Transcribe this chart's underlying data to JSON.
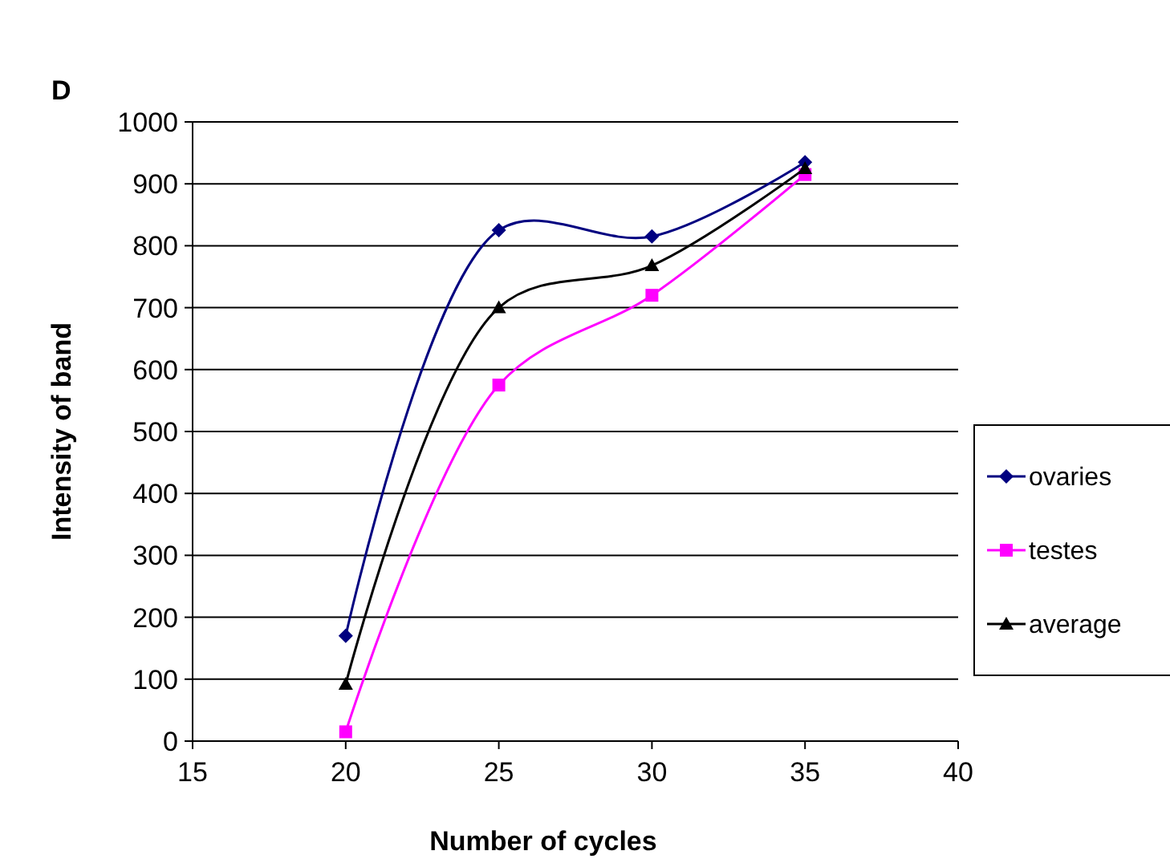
{
  "chart_data": {
    "type": "line",
    "title": "D",
    "xlabel": "Number of cycles",
    "ylabel": "Intensity of band",
    "x": [
      20,
      25,
      30,
      35
    ],
    "series": [
      {
        "name": "ovaries",
        "color": "#000080",
        "marker": "diamond",
        "values": [
          170,
          825,
          815,
          935
        ]
      },
      {
        "name": "testes",
        "color": "#ff00ff",
        "marker": "square",
        "values": [
          15,
          575,
          720,
          915
        ]
      },
      {
        "name": "average",
        "color": "#000000",
        "marker": "triangle",
        "values": [
          92,
          700,
          768,
          925
        ]
      }
    ],
    "xlim": [
      15,
      40
    ],
    "xticks": [
      15,
      20,
      25,
      30,
      35,
      40
    ],
    "ylim": [
      0,
      1000
    ],
    "yticks": [
      0,
      100,
      200,
      300,
      400,
      500,
      600,
      700,
      800,
      900,
      1000
    ],
    "grid": "y",
    "legend": "right",
    "line_style": "solid"
  }
}
